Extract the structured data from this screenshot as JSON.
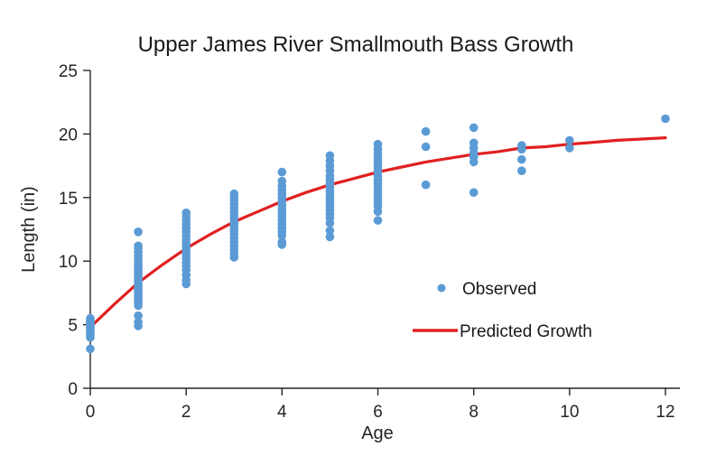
{
  "chart_data": {
    "type": "scatter",
    "title": "Upper James River Smallmouth Bass Growth",
    "xlabel": "Age",
    "ylabel": "Length (in)",
    "xlim": [
      0,
      12
    ],
    "ylim": [
      0,
      25
    ],
    "x_ticks": [
      0,
      2,
      4,
      6,
      8,
      10,
      12
    ],
    "y_ticks": [
      0,
      5,
      10,
      15,
      20,
      25
    ],
    "grid": false,
    "legend_position": "inside-right",
    "axis_color": "#262626",
    "series": [
      {
        "name": "Observed",
        "type": "scatter",
        "color": "#5b9bd5",
        "marker": "circle",
        "groups": [
          {
            "age": 0,
            "lengths": [
              3.1,
              4.0,
              4.2,
              4.3,
              4.5,
              4.6,
              4.8,
              4.9,
              5.0,
              5.1,
              5.2,
              5.3,
              5.4,
              5.5
            ]
          },
          {
            "age": 1,
            "lengths": [
              4.9,
              5.2,
              5.7,
              6.5,
              6.7,
              6.9,
              7.1,
              7.3,
              7.5,
              7.7,
              7.9,
              8.1,
              8.3,
              8.5,
              8.7,
              8.9,
              9.1,
              9.3,
              9.5,
              9.7,
              9.9,
              10.1,
              10.4,
              10.7,
              11.0,
              11.2,
              12.3
            ]
          },
          {
            "age": 2,
            "lengths": [
              8.2,
              8.5,
              8.9,
              9.3,
              9.6,
              9.9,
              10.2,
              10.5,
              10.8,
              11.1,
              11.4,
              11.7,
              12.0,
              12.3,
              12.6,
              12.9,
              13.2,
              13.5,
              13.8
            ]
          },
          {
            "age": 3,
            "lengths": [
              10.3,
              10.6,
              10.9,
              11.2,
              11.5,
              11.8,
              12.1,
              12.4,
              12.7,
              13.0,
              13.3,
              13.6,
              13.9,
              14.2,
              14.5,
              14.8,
              15.1,
              15.3
            ]
          },
          {
            "age": 4,
            "lengths": [
              11.3,
              11.5,
              12.0,
              12.3,
              12.6,
              12.9,
              13.2,
              13.5,
              13.8,
              14.1,
              14.4,
              14.7,
              15.0,
              15.3,
              15.6,
              15.9,
              16.3,
              17.0
            ]
          },
          {
            "age": 5,
            "lengths": [
              11.9,
              12.4,
              13.0,
              13.4,
              13.7,
              14.0,
              14.3,
              14.6,
              14.9,
              15.2,
              15.5,
              15.8,
              16.1,
              16.4,
              16.7,
              17.1,
              17.5,
              17.9,
              18.3
            ]
          },
          {
            "age": 6,
            "lengths": [
              13.2,
              13.9,
              14.3,
              14.6,
              14.9,
              15.2,
              15.5,
              15.8,
              16.1,
              16.4,
              16.7,
              17.0,
              17.3,
              17.6,
              17.9,
              18.2,
              18.5,
              18.8,
              19.2
            ]
          },
          {
            "age": 7,
            "lengths": [
              16.0,
              19.0,
              20.2
            ]
          },
          {
            "age": 8,
            "lengths": [
              15.4,
              17.8,
              18.2,
              18.5,
              18.9,
              19.3,
              20.5
            ]
          },
          {
            "age": 9,
            "lengths": [
              17.1,
              18.0,
              18.8,
              19.1
            ]
          },
          {
            "age": 10,
            "lengths": [
              18.9,
              19.5
            ]
          },
          {
            "age": 12,
            "lengths": [
              21.2
            ]
          }
        ]
      },
      {
        "name": "Predicted Growth",
        "type": "line",
        "color": "#e02020",
        "x": [
          0,
          0.5,
          1,
          1.5,
          2,
          2.5,
          3,
          3.5,
          4,
          4.5,
          5,
          5.5,
          6,
          6.5,
          7,
          7.5,
          8,
          8.5,
          9,
          9.5,
          10,
          10.5,
          11,
          11.5,
          12
        ],
        "y": [
          4.8,
          6.6,
          8.3,
          9.7,
          11.0,
          12.1,
          13.1,
          13.9,
          14.7,
          15.4,
          16.0,
          16.5,
          17.0,
          17.4,
          17.8,
          18.1,
          18.4,
          18.6,
          18.9,
          19.0,
          19.2,
          19.35,
          19.5,
          19.6,
          19.7
        ]
      }
    ]
  }
}
